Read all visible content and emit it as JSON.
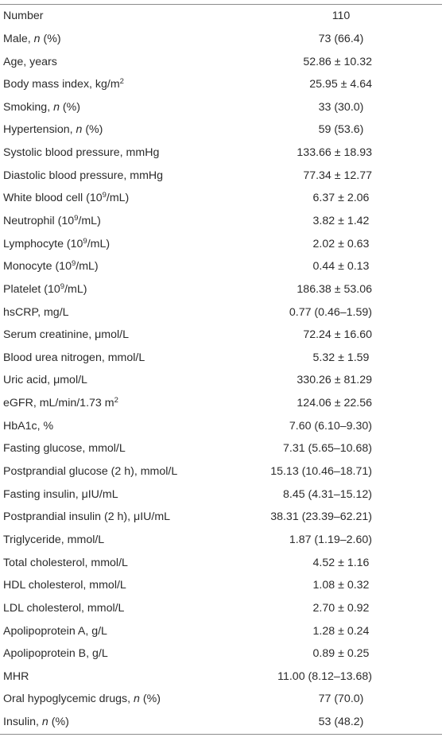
{
  "rows": [
    {
      "label": "Number",
      "value": "110"
    },
    {
      "label": "Male, ",
      "label_italic": "n",
      "label_suffix": " (%)",
      "value": "73 (66.4)"
    },
    {
      "label": "Age, years",
      "value": "52.86 ± 10.32"
    },
    {
      "label": "Body mass index, kg/m",
      "label_sup": "2",
      "value": "25.95 ± 4.64"
    },
    {
      "label": "Smoking, ",
      "label_italic": "n",
      "label_suffix": " (%)",
      "value": "33 (30.0)"
    },
    {
      "label": "Hypertension, ",
      "label_italic": "n",
      "label_suffix": " (%)",
      "value": "59 (53.6)"
    },
    {
      "label": "Systolic blood pressure, mmHg",
      "value": "133.66 ± 18.93"
    },
    {
      "label": "Diastolic blood pressure, mmHg",
      "value": "77.34 ± 12.77"
    },
    {
      "label": "White blood cell (10",
      "label_sup": "9",
      "label_suffix": "/mL)",
      "value": "6.37 ± 2.06"
    },
    {
      "label": "Neutrophil (10",
      "label_sup": "9",
      "label_suffix": "/mL)",
      "value": "3.82 ± 1.42"
    },
    {
      "label": "Lymphocyte (10",
      "label_sup": "9",
      "label_suffix": "/mL)",
      "value": "2.02 ± 0.63"
    },
    {
      "label": "Monocyte (10",
      "label_sup": "9",
      "label_suffix": "/mL)",
      "value": "0.44 ± 0.13"
    },
    {
      "label": "Platelet (10",
      "label_sup": "9",
      "label_suffix": "/mL)",
      "value": "186.38 ± 53.06"
    },
    {
      "label": "hsCRP, mg/L",
      "value": "0.77 (0.46–1.59)"
    },
    {
      "label": "Serum creatinine, μmol/L",
      "value": "72.24 ± 16.60"
    },
    {
      "label": "Blood urea nitrogen, mmol/L",
      "value": "5.32 ± 1.59"
    },
    {
      "label": "Uric acid, μmol/L",
      "value": "330.26 ± 81.29"
    },
    {
      "label": "eGFR, mL/min/1.73 m",
      "label_sup": "2",
      "value": "124.06 ± 22.56"
    },
    {
      "label": "HbA1c, %",
      "value": "7.60 (6.10–9.30)"
    },
    {
      "label": "Fasting glucose, mmol/L",
      "value": "7.31 (5.65–10.68)"
    },
    {
      "label": "Postprandial glucose (2 h), mmol/L",
      "value": "15.13 (10.46–18.71)"
    },
    {
      "label": "Fasting insulin, μIU/mL",
      "value": "8.45 (4.31–15.12)"
    },
    {
      "label": "Postprandial insulin (2 h), μIU/mL",
      "value": "38.31 (23.39–62.21)"
    },
    {
      "label": "Triglyceride, mmol/L",
      "value": "1.87 (1.19–2.60)"
    },
    {
      "label": "Total cholesterol, mmol/L",
      "value": "4.52 ± 1.16"
    },
    {
      "label": "HDL cholesterol, mmol/L",
      "value": "1.08 ± 0.32"
    },
    {
      "label": "LDL cholesterol, mmol/L",
      "value": "2.70 ± 0.92"
    },
    {
      "label": "Apolipoprotein A, g/L",
      "value": "1.28 ± 0.24"
    },
    {
      "label": "Apolipoprotein B, g/L",
      "value": "0.89 ± 0.25"
    },
    {
      "label": "MHR",
      "value": "11.00 (8.12–13.68)"
    },
    {
      "label": "Oral hypoglycemic drugs, ",
      "label_italic": "n",
      "label_suffix": " (%)",
      "value": "77 (70.0)"
    },
    {
      "label": "Insulin, ",
      "label_italic": "n",
      "label_suffix": " (%)",
      "value": "53 (48.2)"
    }
  ]
}
